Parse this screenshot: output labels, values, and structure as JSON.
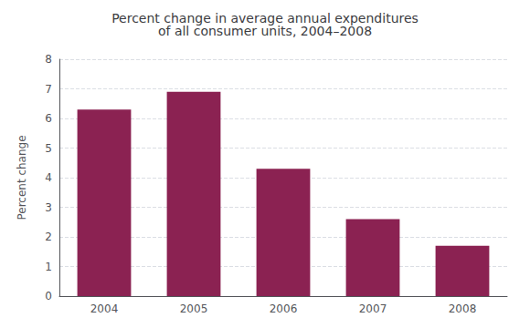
{
  "chart_data": {
    "type": "bar",
    "title": "Percent change in average annual expenditures\nof all consumer units, 2004–2008",
    "categories": [
      "2004",
      "2005",
      "2006",
      "2007",
      "2008"
    ],
    "values": [
      6.3,
      6.9,
      4.3,
      2.6,
      1.7
    ],
    "color": "#8B2252",
    "ylabel": "Percent change",
    "ylim": [
      0,
      8
    ],
    "yticks": [
      0,
      1,
      2,
      3,
      4,
      5,
      6,
      7,
      8
    ],
    "grid": true
  }
}
